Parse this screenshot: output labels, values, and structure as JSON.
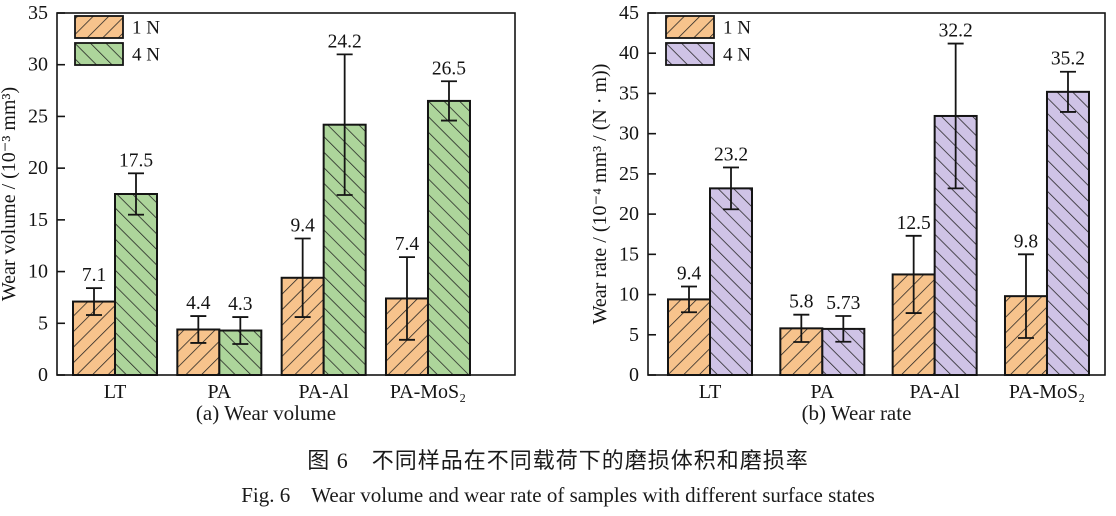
{
  "figure": {
    "caption_zh": "图 6　不同样品在不同载荷下的磨损体积和磨损率",
    "caption_en": "Fig. 6　Wear volume and wear rate of samples with different surface states"
  },
  "chart_data": [
    {
      "type": "bar",
      "subtitle": "(a) Wear volume",
      "ylabel": "Wear volume / (10⁻³ mm³)",
      "ylim": [
        0,
        35
      ],
      "ytick_step": 5,
      "grid": false,
      "legend_position": "top-left",
      "categories": [
        "LT",
        "PA",
        "PA-Al",
        "PA-MoS₂"
      ],
      "series": [
        {
          "name": "1 N",
          "color": "#F7C38C",
          "hatch": "/",
          "values": [
            7.1,
            4.4,
            9.4,
            7.4
          ],
          "value_labels": [
            "7.1",
            "4.4",
            "9.4",
            "7.4"
          ],
          "errors": [
            1.3,
            1.3,
            3.8,
            4.0
          ]
        },
        {
          "name": "4 N",
          "color": "#ADD59B",
          "hatch": "\\",
          "values": [
            17.5,
            4.3,
            24.2,
            26.5
          ],
          "value_labels": [
            "17.5",
            "4.3",
            "24.2",
            "26.5"
          ],
          "errors": [
            2.0,
            1.3,
            6.8,
            1.9
          ]
        }
      ]
    },
    {
      "type": "bar",
      "subtitle": "(b) Wear rate",
      "ylabel": "Wear rate / (10⁻⁴ mm³ / (N · m))",
      "ylim": [
        0,
        45
      ],
      "ytick_step": 5,
      "grid": false,
      "legend_position": "top-left",
      "categories": [
        "LT",
        "PA",
        "PA-Al",
        "PA-MoS₂"
      ],
      "series": [
        {
          "name": "1 N",
          "color": "#F7C38C",
          "hatch": "/",
          "values": [
            9.4,
            5.8,
            12.5,
            9.8
          ],
          "value_labels": [
            "9.4",
            "5.8",
            "12.5",
            "9.8"
          ],
          "errors": [
            1.6,
            1.7,
            4.8,
            5.2
          ]
        },
        {
          "name": "4 N",
          "color": "#CFC3E6",
          "hatch": "\\",
          "values": [
            23.2,
            5.73,
            32.2,
            35.2
          ],
          "value_labels": [
            "23.2",
            "5.73",
            "32.2",
            "35.2"
          ],
          "errors": [
            2.6,
            1.6,
            9.0,
            2.5
          ]
        }
      ]
    }
  ]
}
